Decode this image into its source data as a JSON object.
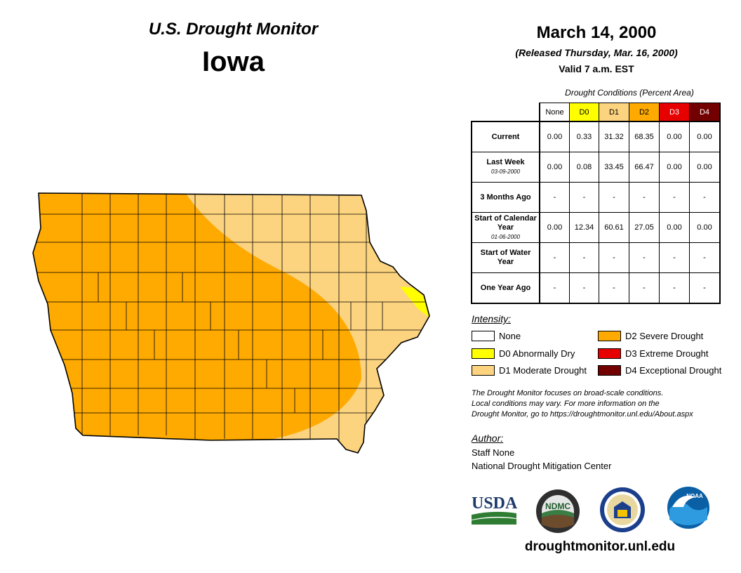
{
  "header": {
    "monitor_title": "U.S. Drought Monitor",
    "state": "Iowa",
    "date": "March 14, 2000",
    "released": "(Released Thursday, Mar. 16, 2000)",
    "valid": "Valid 7 a.m. EST"
  },
  "table": {
    "caption": "Drought Conditions (Percent Area)",
    "columns": [
      "None",
      "D0",
      "D1",
      "D2",
      "D3",
      "D4"
    ],
    "rows": [
      {
        "label": "Current",
        "sub": "",
        "values": [
          "0.00",
          "0.33",
          "31.32",
          "68.35",
          "0.00",
          "0.00"
        ]
      },
      {
        "label": "Last Week",
        "sub": "03-09-2000",
        "values": [
          "0.00",
          "0.08",
          "33.45",
          "66.47",
          "0.00",
          "0.00"
        ]
      },
      {
        "label": "3 Months Ago",
        "sub": "",
        "values": [
          "-",
          "-",
          "-",
          "-",
          "-",
          "-"
        ]
      },
      {
        "label": "Start of Calendar Year",
        "sub": "01-06-2000",
        "values": [
          "0.00",
          "12.34",
          "60.61",
          "27.05",
          "0.00",
          "0.00"
        ]
      },
      {
        "label": "Start of Water Year",
        "sub": "",
        "values": [
          "-",
          "-",
          "-",
          "-",
          "-",
          "-"
        ]
      },
      {
        "label": "One Year Ago",
        "sub": "",
        "values": [
          "-",
          "-",
          "-",
          "-",
          "-",
          "-"
        ]
      }
    ]
  },
  "legend": {
    "heading": "Intensity:",
    "items": [
      {
        "label": "None",
        "color": "#ffffff"
      },
      {
        "label": "D0 Abnormally Dry",
        "color": "#ffff00"
      },
      {
        "label": "D1 Moderate Drought",
        "color": "#fcd37f"
      },
      {
        "label": "D2 Severe Drought",
        "color": "#ffaa00"
      },
      {
        "label": "D3 Extreme Drought",
        "color": "#e60000"
      },
      {
        "label": "D4 Exceptional Drought",
        "color": "#730000"
      }
    ]
  },
  "disclaimer": {
    "line1": "The Drought Monitor focuses on broad-scale conditions.",
    "line2": "Local conditions may vary. For more information on the",
    "line3": "Drought Monitor, go to https://droughtmonitor.unl.edu/About.aspx"
  },
  "author": {
    "heading": "Author:",
    "name": "Staff None",
    "org": "National Drought Mitigation Center"
  },
  "logos": {
    "usda": "USDA",
    "ndmc": "NDMC",
    "noaa": "NOAA"
  },
  "website": "droughtmonitor.unl.edu",
  "colors": {
    "none": "#ffffff",
    "d0": "#ffff00",
    "d1": "#fcd37f",
    "d2": "#ffaa00",
    "d3": "#e60000",
    "d4": "#730000"
  }
}
